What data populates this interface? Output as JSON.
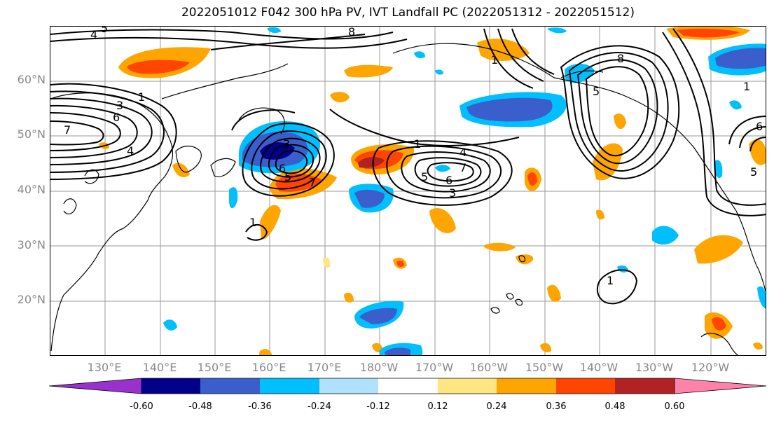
{
  "title": "2022051012 F042 300 hPa PV, IVT Landfall PC (2022051312 - 2022051512)",
  "lat_labels": [
    "60°N",
    "50°N",
    "40°N",
    "30°N",
    "20°N"
  ],
  "lon_labels": [
    "130°E",
    "140°E",
    "150°E",
    "160°E",
    "170°E",
    "180°W",
    "170°W",
    "160°W",
    "150°W",
    "140°W",
    "130°W",
    "120°W"
  ],
  "colorbar": {
    "ticks": [
      "-0.60",
      "-0.48",
      "-0.36",
      "-0.24",
      "-0.12",
      "0.12",
      "0.24",
      "0.36",
      "0.48",
      "0.60"
    ],
    "colors": [
      "#9932cc",
      "#00008b",
      "#3a5fcd",
      "#00bfff",
      "#b0e2ff",
      "#ffffff",
      "#ffe680",
      "#ffa500",
      "#ff4500",
      "#b22222",
      "#ff82ab"
    ]
  },
  "contour_labels": [
    "4",
    "5",
    "8",
    "7",
    "6",
    "3",
    "4",
    "1",
    "3",
    "5",
    "6",
    "7",
    "1",
    "1",
    "3",
    "4",
    "5",
    "6",
    "7",
    "1",
    "8",
    "5",
    "5",
    "6",
    "1",
    "1"
  ]
}
